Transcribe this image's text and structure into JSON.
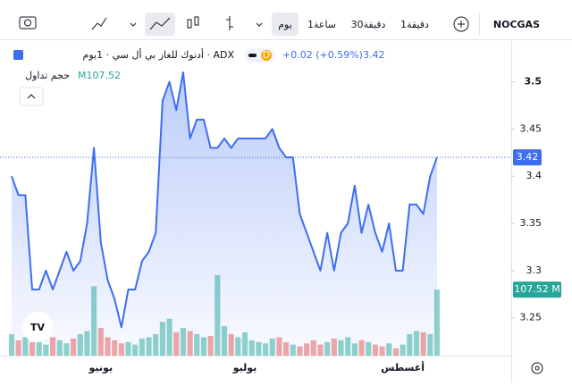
{
  "toolbar": {
    "symbol": "NOCGAS",
    "intervals": [
      "1دقيقة",
      "30دقيقة",
      "1ساعة",
      "يوم"
    ]
  },
  "chart_data": {
    "type": "area",
    "legend": {
      "title": "أدنوك للغاز بي أل سي · 1يوم · ADX",
      "badge": "D",
      "change": "+0.02 (+0.59%)",
      "last": "3.42",
      "volume_name": "حجم تداول",
      "volume_value": "M107.52"
    },
    "categories": [
      null,
      null,
      null,
      null,
      null,
      null,
      null,
      null,
      null,
      null,
      null,
      null,
      null,
      "يونيو",
      null,
      null,
      null,
      null,
      null,
      null,
      null,
      null,
      null,
      null,
      null,
      null,
      null,
      null,
      null,
      null,
      null,
      null,
      null,
      null,
      "يوليو",
      null,
      null,
      null,
      null,
      null,
      null,
      null,
      null,
      null,
      null,
      null,
      null,
      null,
      null,
      null,
      null,
      null,
      null,
      null,
      null,
      null,
      null,
      "أغسطس",
      null,
      null,
      null,
      null,
      null
    ],
    "series": [
      {
        "name": "price",
        "color": "#3d6ef0",
        "values": [
          3.4,
          3.38,
          3.38,
          3.28,
          3.28,
          3.3,
          3.28,
          3.3,
          3.32,
          3.3,
          3.31,
          3.35,
          3.43,
          3.33,
          3.29,
          3.27,
          3.24,
          3.28,
          3.28,
          3.31,
          3.32,
          3.34,
          3.48,
          3.5,
          3.47,
          3.51,
          3.44,
          3.46,
          3.46,
          3.43,
          3.43,
          3.44,
          3.43,
          3.44,
          3.44,
          3.44,
          3.44,
          3.44,
          3.45,
          3.43,
          3.42,
          3.42,
          3.36,
          3.34,
          3.32,
          3.3,
          3.34,
          3.3,
          3.34,
          3.35,
          3.39,
          3.34,
          3.37,
          3.34,
          3.32,
          3.35,
          3.3,
          3.3,
          3.37,
          3.37,
          3.36,
          3.4,
          3.42
        ]
      },
      {
        "name": "volume",
        "up_color": "#8fd3ca",
        "down_color": "#f2a7a7",
        "values": [
          35,
          25,
          30,
          22,
          28,
          18,
          30,
          25,
          20,
          28,
          35,
          40,
          113,
          45,
          30,
          25,
          20,
          22,
          18,
          28,
          30,
          35,
          55,
          60,
          38,
          45,
          40,
          35,
          30,
          32,
          131,
          48,
          35,
          30,
          38,
          25,
          22,
          20,
          28,
          30,
          22,
          18,
          15,
          20,
          25,
          18,
          22,
          28,
          25,
          30,
          20,
          25,
          22,
          18,
          15,
          20,
          12,
          18,
          35,
          40,
          38,
          35,
          107.52
        ]
      }
    ],
    "last_price_label": "3.42",
    "last_volume_label": "107.52 M",
    "ylim": [
      3.21,
      3.545
    ],
    "yticks": [
      3.25,
      3.3,
      3.35,
      3.4,
      3.45,
      3.5
    ]
  }
}
